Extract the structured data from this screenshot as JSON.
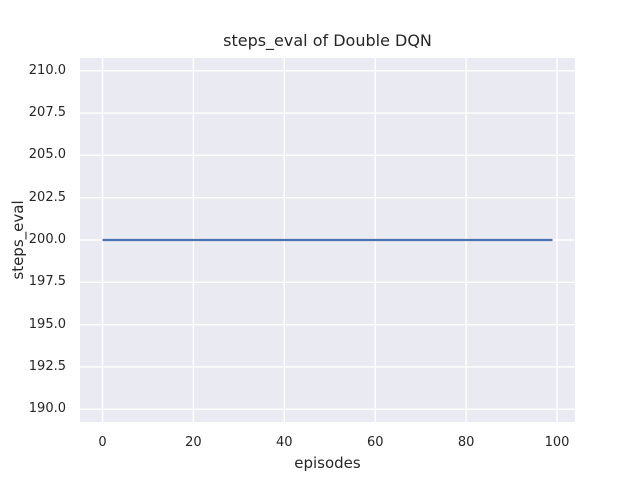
{
  "chart_data": {
    "type": "line",
    "title": "steps_eval of Double DQN",
    "xlabel": "episodes",
    "ylabel": "steps_eval",
    "xlim": [
      -4.95,
      103.95
    ],
    "ylim": [
      189.25,
      210.75
    ],
    "grid": true,
    "legend": null,
    "x_ticks": [
      {
        "value": 0,
        "label": "0"
      },
      {
        "value": 20,
        "label": "20"
      },
      {
        "value": 40,
        "label": "40"
      },
      {
        "value": 60,
        "label": "60"
      },
      {
        "value": 80,
        "label": "80"
      },
      {
        "value": 100,
        "label": "100"
      }
    ],
    "y_ticks": [
      {
        "value": 190.0,
        "label": "190.0"
      },
      {
        "value": 192.5,
        "label": "192.5"
      },
      {
        "value": 195.0,
        "label": "195.0"
      },
      {
        "value": 197.5,
        "label": "197.5"
      },
      {
        "value": 200.0,
        "label": "200.0"
      },
      {
        "value": 202.5,
        "label": "202.5"
      },
      {
        "value": 205.0,
        "label": "205.0"
      },
      {
        "value": 207.5,
        "label": "207.5"
      },
      {
        "value": 210.0,
        "label": "210.0"
      }
    ],
    "series": [
      {
        "name": "steps_eval",
        "color": "#4c72b0",
        "line_width": 2.2,
        "points": [
          [
            0,
            200
          ],
          [
            99,
            200
          ]
        ]
      }
    ],
    "colors": {
      "figure_bg": "#ffffff",
      "plot_bg": "#eaeaf2",
      "grid": "#ffffff",
      "text": "#262626"
    }
  }
}
